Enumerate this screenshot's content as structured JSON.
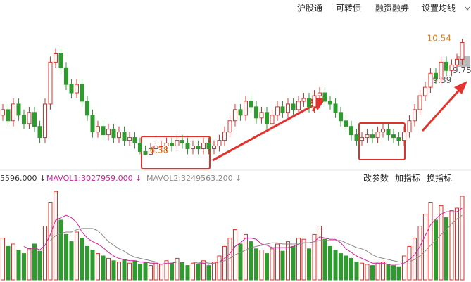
{
  "toolbar": [
    "沪股通",
    "可转债",
    "融资融券",
    "设置均线"
  ],
  "buttons": [
    "改参数",
    "加指标",
    "换指标"
  ],
  "chart_data": [
    {
      "type": "candlestick",
      "up_color": "#e0302c",
      "down_color": "#2e9b2e",
      "ylim": [
        5.63,
        11.17
      ],
      "open": [
        7.8,
        8.0,
        7.6,
        8.2,
        7.8,
        7.5,
        7.9,
        7.4,
        7.0,
        8.2,
        9.7,
        10.0,
        9.5,
        8.9,
        8.6,
        8.9,
        8.3,
        7.8,
        7.2,
        7.4,
        7.1,
        7.3,
        7.0,
        7.2,
        6.9,
        7.0,
        6.8,
        6.5,
        6.4,
        6.6,
        6.7,
        6.7,
        6.8,
        6.7,
        6.9,
        6.8,
        6.6,
        6.7,
        6.6,
        6.8,
        6.6,
        6.7,
        6.9,
        7.2,
        7.6,
        8.0,
        7.8,
        8.3,
        8.1,
        7.7,
        7.9,
        7.5,
        7.8,
        8.1,
        7.9,
        8.2,
        8.0,
        8.3,
        8.4,
        8.1,
        8.5,
        8.6,
        8.3,
        8.2,
        7.9,
        7.6,
        7.4,
        7.1,
        6.9,
        7.0,
        7.1,
        7.0,
        7.2,
        7.3,
        7.1,
        7.0,
        6.9,
        7.2,
        7.6,
        8.0,
        8.5,
        8.8,
        9.3,
        9.1,
        9.7,
        9.4,
        9.6,
        9.8
      ],
      "high": [
        8.2,
        8.2,
        8.4,
        8.4,
        8.0,
        8.1,
        8.1,
        7.6,
        8.4,
        9.9,
        10.2,
        10.2,
        9.7,
        9.1,
        9.1,
        9.1,
        8.5,
        8.0,
        7.6,
        7.6,
        7.5,
        7.5,
        7.4,
        7.4,
        7.2,
        7.2,
        7.0,
        6.7,
        6.8,
        6.9,
        6.9,
        7.0,
        7.0,
        7.1,
        7.1,
        7.0,
        6.9,
        6.9,
        7.0,
        7.0,
        6.9,
        7.1,
        7.4,
        7.8,
        8.2,
        8.2,
        8.5,
        8.5,
        8.3,
        8.1,
        8.1,
        8.0,
        8.3,
        8.3,
        8.4,
        8.4,
        8.5,
        8.6,
        8.6,
        8.7,
        8.8,
        8.8,
        8.5,
        8.4,
        8.1,
        7.8,
        7.6,
        7.3,
        7.2,
        7.3,
        7.3,
        7.4,
        7.5,
        7.5,
        7.3,
        7.2,
        7.4,
        7.8,
        8.2,
        8.7,
        9.0,
        9.5,
        9.5,
        9.9,
        9.9,
        9.8,
        10.0,
        10.54
      ],
      "low": [
        7.6,
        7.4,
        7.4,
        7.6,
        7.3,
        7.3,
        7.2,
        6.8,
        6.8,
        8.0,
        9.5,
        9.3,
        8.7,
        8.4,
        8.4,
        8.1,
        7.6,
        7.0,
        7.0,
        6.9,
        6.9,
        6.8,
        6.8,
        6.7,
        6.7,
        6.6,
        6.4,
        6.38,
        6.4,
        6.4,
        6.5,
        6.5,
        6.5,
        6.5,
        6.6,
        6.4,
        6.4,
        6.4,
        6.4,
        6.4,
        6.4,
        6.5,
        6.7,
        7.0,
        7.4,
        7.6,
        7.6,
        7.9,
        7.5,
        7.5,
        7.3,
        7.3,
        7.6,
        7.7,
        7.7,
        7.8,
        7.8,
        8.1,
        7.9,
        7.9,
        8.3,
        8.1,
        8.0,
        7.7,
        7.4,
        7.2,
        6.9,
        6.7,
        6.7,
        6.8,
        6.8,
        6.8,
        7.0,
        6.9,
        6.8,
        6.7,
        6.7,
        7.0,
        7.4,
        7.8,
        8.3,
        8.6,
        8.9,
        8.9,
        9.2,
        9.2,
        9.4,
        9.6
      ],
      "close": [
        8.0,
        7.6,
        8.2,
        7.8,
        7.5,
        7.9,
        7.4,
        7.0,
        8.2,
        9.7,
        10.0,
        9.5,
        8.9,
        8.6,
        8.9,
        8.3,
        7.8,
        7.2,
        7.4,
        7.1,
        7.3,
        7.0,
        7.2,
        6.9,
        7.0,
        6.8,
        6.5,
        6.4,
        6.6,
        6.7,
        6.7,
        6.8,
        6.7,
        6.9,
        6.8,
        6.6,
        6.7,
        6.6,
        6.8,
        6.6,
        6.7,
        6.9,
        7.2,
        7.6,
        8.0,
        7.8,
        8.3,
        8.1,
        7.7,
        7.9,
        7.5,
        7.8,
        8.1,
        7.9,
        8.2,
        8.0,
        8.3,
        8.4,
        8.1,
        8.5,
        8.6,
        8.3,
        8.2,
        7.9,
        7.6,
        7.4,
        7.1,
        6.9,
        7.0,
        7.1,
        7.0,
        7.2,
        7.3,
        7.1,
        7.0,
        6.9,
        7.2,
        7.6,
        8.0,
        8.5,
        8.8,
        9.3,
        9.1,
        9.7,
        9.4,
        9.6,
        9.8,
        10.4
      ],
      "annotations": [
        {
          "value": 10.54,
          "index": 87,
          "color": "#e07b18"
        },
        {
          "value": 6.38,
          "index": 27,
          "color": "#e07b18"
        },
        {
          "value": 9.39,
          "index": 83,
          "color": "#555555"
        },
        {
          "value": 9.75,
          "index": 86,
          "color": "#555555"
        }
      ]
    },
    {
      "type": "volume",
      "volume_label": "5596.000 ↓",
      "ylim": [
        0,
        8
      ],
      "values": [
        3.5,
        2.8,
        3.0,
        2.5,
        2.2,
        2.6,
        3.0,
        2.4,
        4.5,
        6.5,
        7.4,
        5.0,
        3.8,
        3.2,
        4.0,
        3.5,
        2.8,
        2.5,
        2.2,
        2.0,
        1.8,
        1.6,
        1.5,
        1.7,
        1.4,
        1.6,
        1.3,
        1.5,
        1.2,
        1.4,
        1.3,
        1.6,
        1.4,
        1.8,
        1.5,
        1.2,
        1.4,
        1.3,
        1.6,
        1.2,
        1.5,
        2.0,
        2.8,
        3.5,
        4.2,
        3.0,
        3.8,
        3.2,
        2.6,
        2.5,
        2.2,
        2.6,
        3.0,
        2.4,
        3.2,
        2.8,
        3.5,
        3.4,
        2.6,
        3.8,
        4.5,
        3.4,
        2.8,
        2.5,
        2.2,
        2.0,
        1.8,
        1.5,
        1.4,
        1.3,
        1.2,
        1.4,
        1.5,
        1.3,
        1.2,
        1.1,
        2.0,
        2.8,
        3.5,
        4.5,
        5.5,
        6.5,
        5.0,
        6.2,
        5.2,
        5.8,
        6.0,
        7.0
      ],
      "series": [
        {
          "name": "MAVOL1:3027959.000 ↓",
          "color": "#d0219f",
          "values": [
            null,
            null,
            null,
            null,
            2.8,
            2.6,
            2.7,
            2.5,
            2.9,
            3.8,
            5.0,
            5.2,
            5.4,
            5.2,
            4.8,
            4.0,
            3.5,
            3.2,
            3.0,
            2.7,
            2.3,
            2.0,
            1.8,
            1.7,
            1.6,
            1.6,
            1.5,
            1.5,
            1.4,
            1.4,
            1.3,
            1.4,
            1.4,
            1.5,
            1.5,
            1.5,
            1.5,
            1.4,
            1.4,
            1.3,
            1.4,
            1.5,
            1.8,
            2.2,
            2.8,
            3.1,
            3.5,
            3.5,
            3.4,
            3.0,
            2.9,
            2.7,
            2.7,
            2.7,
            2.7,
            2.8,
            3.0,
            3.1,
            3.1,
            3.2,
            3.6,
            3.5,
            3.4,
            3.4,
            3.1,
            2.6,
            2.3,
            2.0,
            1.8,
            1.6,
            1.4,
            1.4,
            1.4,
            1.3,
            1.3,
            1.3,
            1.4,
            1.7,
            2.1,
            2.8,
            3.7,
            4.6,
            5.1,
            5.5,
            5.7,
            5.7,
            5.7,
            6.0
          ]
        },
        {
          "name": "MAVOL2:3249563.200 ↓",
          "color": "#8a8a8a",
          "values": [
            null,
            null,
            null,
            null,
            null,
            null,
            null,
            null,
            null,
            3.3,
            3.7,
            3.9,
            4.0,
            4.0,
            4.2,
            4.3,
            4.3,
            4.3,
            4.1,
            3.7,
            3.2,
            2.9,
            2.6,
            2.4,
            2.1,
            1.9,
            1.8,
            1.7,
            1.6,
            1.5,
            1.5,
            1.5,
            1.5,
            1.5,
            1.5,
            1.5,
            1.5,
            1.4,
            1.5,
            1.4,
            1.4,
            1.5,
            1.6,
            1.8,
            2.1,
            2.3,
            2.5,
            2.7,
            2.8,
            2.9,
            3.0,
            3.1,
            3.1,
            3.0,
            3.0,
            3.0,
            3.0,
            3.1,
            3.1,
            3.2,
            3.3,
            3.3,
            3.3,
            3.3,
            3.3,
            3.1,
            2.9,
            2.7,
            2.6,
            2.4,
            2.1,
            1.9,
            1.8,
            1.7,
            1.6,
            1.5,
            1.5,
            1.5,
            1.7,
            2.0,
            2.4,
            2.9,
            3.3,
            3.8,
            4.2,
            4.7,
            5.1,
            5.4
          ]
        }
      ]
    }
  ]
}
